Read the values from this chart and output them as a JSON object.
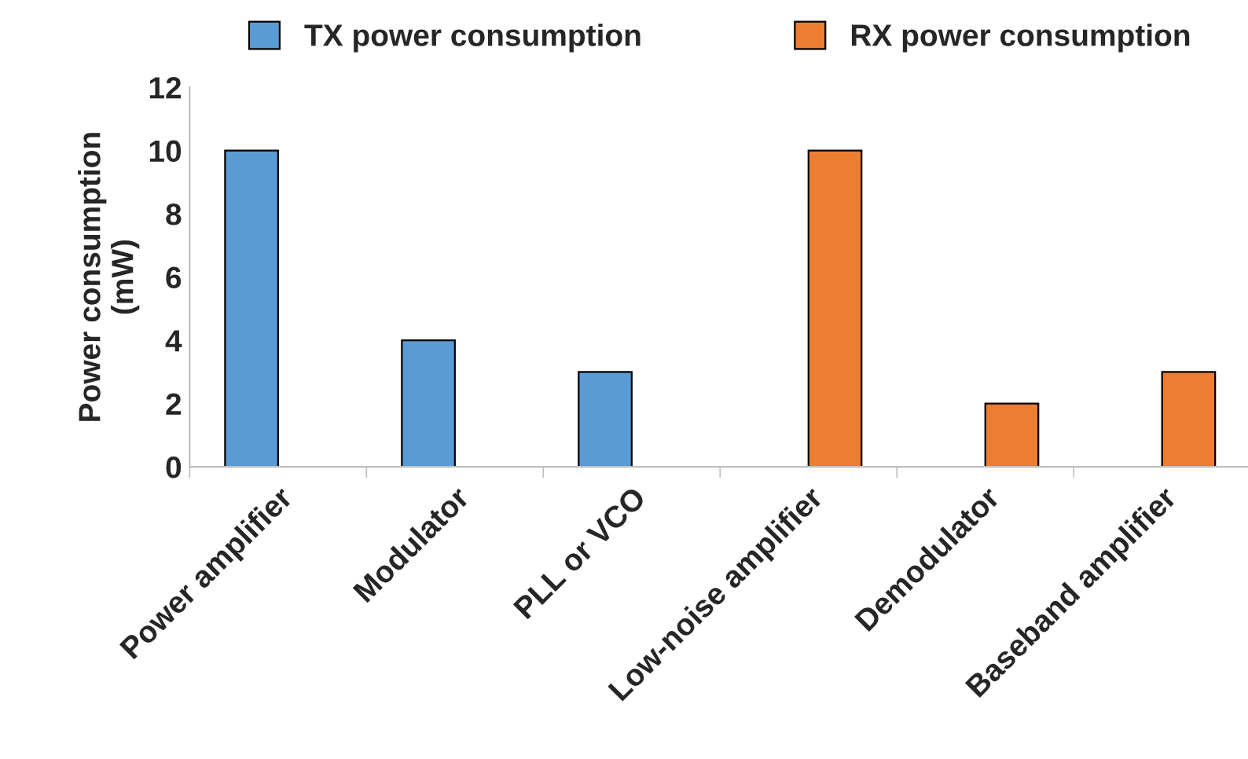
{
  "chart_data": {
    "type": "bar",
    "ylabel": "Power consumption\n(mW)",
    "categories": [
      "Power amplifier",
      "Modulator",
      "PLL or VCO",
      "Low-noise amplifier",
      "Demodulator",
      "Baseband amplifier"
    ],
    "series": [
      {
        "name": "TX power consumption",
        "color": "#5b9bd5",
        "values": [
          10,
          4,
          3,
          null,
          null,
          null
        ]
      },
      {
        "name": "RX power consumption",
        "color": "#ed7d31",
        "values": [
          null,
          null,
          null,
          10,
          2,
          3
        ]
      }
    ],
    "ylim": [
      0,
      12
    ],
    "yticks": [
      0,
      2,
      4,
      6,
      8,
      10,
      12
    ],
    "grid": false,
    "legend": "top"
  }
}
